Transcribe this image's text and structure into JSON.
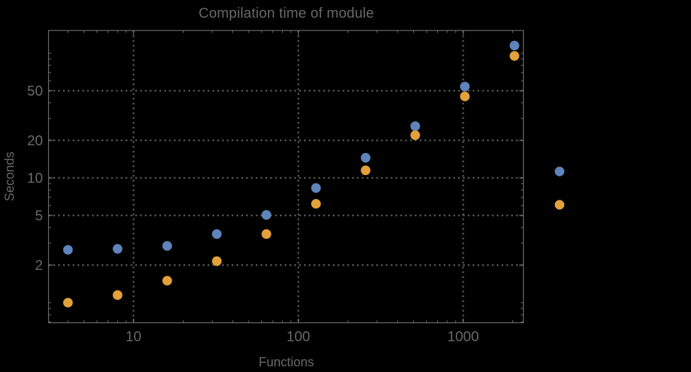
{
  "title": "Compilation time of module",
  "colors": {
    "background": "#000000",
    "text": "#686868",
    "frame": "#6f6f6f",
    "gridline": "#585858",
    "series_blue": "#5E84BB",
    "series_orange": "#E2A13A"
  },
  "chart_data": {
    "type": "scatter",
    "title": "Compilation time of module",
    "xlabel": "Functions",
    "ylabel": "Seconds",
    "xscale": "log",
    "yscale": "log",
    "xlim": [
      3.05,
      2320
    ],
    "ylim": [
      0.69,
      152
    ],
    "grid": true,
    "grid_style": "dotted",
    "x": [
      4,
      8,
      16,
      32,
      64,
      128,
      256,
      512,
      1024,
      2048
    ],
    "series": [
      {
        "name": "series-1-blue",
        "color": "#5E84BB",
        "values": [
          2.65,
          2.7,
          2.85,
          3.55,
          5.05,
          8.3,
          14.5,
          26,
          54,
          115
        ]
      },
      {
        "name": "series-2-orange",
        "color": "#E2A13A",
        "values": [
          1.0,
          1.15,
          1.5,
          2.15,
          3.55,
          6.2,
          11.5,
          22,
          45,
          95
        ]
      }
    ],
    "x_major_ticks": [
      10,
      100,
      1000
    ],
    "x_tick_labels": [
      "10",
      "100",
      "1000"
    ],
    "y_major_ticks": [
      2,
      5,
      10,
      20,
      50
    ],
    "y_tick_labels": [
      "2",
      "5",
      "10",
      "20",
      "50"
    ],
    "legend": {
      "position": "right-outside",
      "markers": [
        {
          "name": "legend-marker-blue",
          "color": "#5E84BB",
          "label": ""
        },
        {
          "name": "legend-marker-orange",
          "color": "#E2A13A",
          "label": ""
        }
      ]
    }
  }
}
